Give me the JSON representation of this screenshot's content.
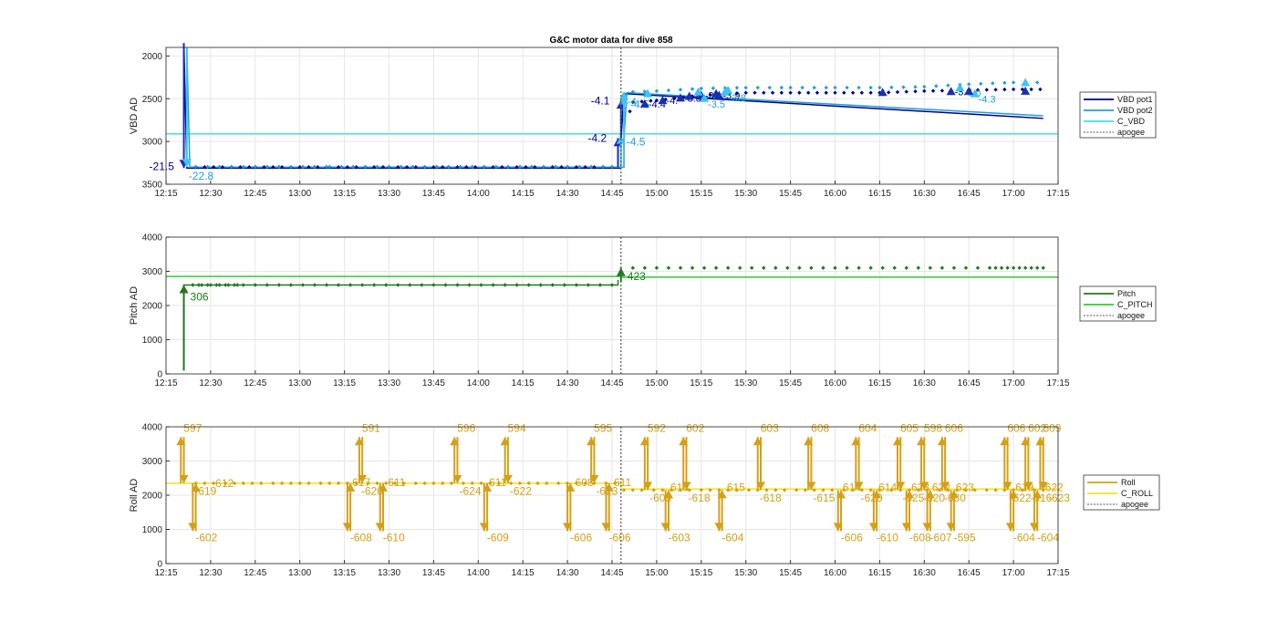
{
  "figure": {
    "title": "G&C motor data for dive 858"
  },
  "chart_data": [
    {
      "type": "line",
      "id": "vbd",
      "ylabel": "VBD AD",
      "ylim": [
        1900,
        3500
      ],
      "y_reversed": true,
      "yticks": [
        2000,
        2500,
        3000,
        3500
      ],
      "xlim": [
        "12:15",
        "17:15"
      ],
      "xticks": [
        "12:15",
        "12:30",
        "12:45",
        "13:00",
        "13:15",
        "13:30",
        "13:45",
        "14:00",
        "14:15",
        "14:30",
        "14:45",
        "15:00",
        "15:15",
        "15:30",
        "15:45",
        "16:00",
        "16:15",
        "16:30",
        "16:45",
        "17:00",
        "17:15"
      ],
      "grid": true,
      "legend_position": "right",
      "legend": [
        "VBD pot1",
        "VBD pot2",
        "C_VBD",
        "apogee"
      ],
      "colors": {
        "pot1": "#00008b",
        "pot2": "#1e9fdc",
        "c_vbd": "#40e0e6",
        "apogee": "#555555",
        "arrow1": "#1a2fb0",
        "arrow2": "#3fc3f0"
      },
      "series": [
        {
          "name": "VBD pot1",
          "x": [
            "12:21",
            "12:22",
            "14:48",
            "14:48",
            "14:49",
            "17:10"
          ],
          "values": [
            1850,
            3310,
            3310,
            3000,
            2440,
            2730
          ]
        },
        {
          "name": "VBD pot2",
          "x": [
            "12:22",
            "12:23",
            "14:49",
            "14:49",
            "14:50",
            "17:10"
          ],
          "values": [
            1900,
            3300,
            3300,
            2960,
            2430,
            2700
          ]
        },
        {
          "name": "C_VBD",
          "x": [
            "12:15",
            "17:15"
          ],
          "values": [
            2910,
            2910
          ]
        }
      ],
      "vbd_pot1_points": [
        [
          "12:25",
          3300
        ],
        [
          "12:45",
          3300
        ],
        [
          "13:10",
          3300
        ],
        [
          "13:30",
          3300
        ],
        [
          "13:50",
          3300
        ],
        [
          "14:10",
          3300
        ],
        [
          "14:30",
          3300
        ],
        [
          "14:45",
          3300
        ],
        [
          "14:52",
          2540
        ],
        [
          "15:00",
          2520
        ],
        [
          "15:15",
          2460
        ],
        [
          "15:30",
          2430
        ],
        [
          "15:45",
          2430
        ],
        [
          "16:00",
          2430
        ],
        [
          "16:15",
          2430
        ],
        [
          "16:30",
          2410
        ],
        [
          "16:45",
          2400
        ],
        [
          "17:00",
          2390
        ],
        [
          "17:10",
          2390
        ]
      ],
      "vbd_pot2_points": [
        [
          "12:25",
          3295
        ],
        [
          "12:45",
          3295
        ],
        [
          "13:10",
          3295
        ],
        [
          "13:30",
          3295
        ],
        [
          "13:50",
          3295
        ],
        [
          "14:10",
          3295
        ],
        [
          "14:30",
          3295
        ],
        [
          "14:45",
          3295
        ],
        [
          "14:52",
          2420
        ],
        [
          "15:00",
          2410
        ],
        [
          "15:15",
          2380
        ],
        [
          "15:30",
          2370
        ],
        [
          "15:45",
          2370
        ],
        [
          "16:00",
          2370
        ],
        [
          "16:15",
          2370
        ],
        [
          "16:30",
          2360
        ],
        [
          "16:45",
          2330
        ],
        [
          "17:00",
          2310
        ],
        [
          "17:10",
          2310
        ]
      ],
      "arrows": [
        {
          "x": "12:21",
          "from": 1850,
          "to": 3310,
          "series": 1,
          "label": "-21.5"
        },
        {
          "x": "12:22",
          "from": 1900,
          "to": 3300,
          "series": 2,
          "label": "-22.8"
        },
        {
          "x": "14:47",
          "from": 3300,
          "to": 2960,
          "series": 1,
          "label": "-4.2"
        },
        {
          "x": "14:48",
          "from": 3300,
          "to": 2930,
          "series": 2,
          "label": "-4.5"
        },
        {
          "x": "14:48",
          "from": 2960,
          "to": 2520,
          "series": 1,
          "label": "-4.1"
        },
        {
          "x": "14:49",
          "from": 2930,
          "to": 2470,
          "series": 2,
          "label": "-4.5"
        }
      ],
      "tri_markers": [
        {
          "x": "14:49",
          "y": 2465,
          "series": 2,
          "label": "-4."
        },
        {
          "x": "14:56",
          "y": 2560,
          "series": 1,
          "label": "-4.4"
        },
        {
          "x": "15:02",
          "y": 2520,
          "series": 1,
          "label": "-4."
        },
        {
          "x": "15:08",
          "y": 2490,
          "series": 1,
          "label": "-3.8"
        },
        {
          "x": "15:11",
          "y": 2470,
          "series": 1,
          "label": "-3."
        },
        {
          "x": "15:15",
          "y": 2460,
          "series": 1,
          "label": "-3."
        },
        {
          "x": "15:21",
          "y": 2460,
          "series": 1,
          "label": "-3.9"
        },
        {
          "x": "15:16",
          "y": 2495,
          "series": 2,
          "label": "-3.5"
        },
        {
          "x": "15:23",
          "y": 2420,
          "series": 2,
          "label": "-3.8"
        },
        {
          "x": "16:39",
          "y": 2415,
          "series": 1,
          "label": "-3.8"
        },
        {
          "x": "16:42",
          "y": 2370,
          "series": 2,
          "label": "-4.0"
        },
        {
          "x": "16:47",
          "y": 2440,
          "series": 2,
          "label": "-4.3"
        }
      ],
      "plain_tri": [
        {
          "x": "15:20",
          "y": 2440,
          "series": 1
        },
        {
          "x": "16:16",
          "y": 2425,
          "series": 1
        },
        {
          "x": "16:45",
          "y": 2410,
          "series": 1
        },
        {
          "x": "17:04",
          "y": 2410,
          "series": 1
        },
        {
          "x": "14:57",
          "y": 2440,
          "series": 2
        },
        {
          "x": "15:14",
          "y": 2420,
          "series": 2
        },
        {
          "x": "15:24",
          "y": 2400,
          "series": 2
        },
        {
          "x": "17:04",
          "y": 2310,
          "series": 2
        }
      ]
    },
    {
      "type": "line",
      "id": "pitch",
      "ylabel": "Pitch AD",
      "ylim": [
        0,
        4000
      ],
      "yticks": [
        0,
        1000,
        2000,
        3000,
        4000
      ],
      "xlim": [
        "12:15",
        "17:15"
      ],
      "xticks": [
        "12:15",
        "12:30",
        "12:45",
        "13:00",
        "13:15",
        "13:30",
        "13:45",
        "14:00",
        "14:15",
        "14:30",
        "14:45",
        "15:00",
        "15:15",
        "15:30",
        "15:45",
        "16:00",
        "16:15",
        "16:30",
        "16:45",
        "17:00",
        "17:15"
      ],
      "grid": true,
      "legend_position": "right",
      "legend": [
        "Pitch",
        "C_PITCH",
        "apogee"
      ],
      "colors": {
        "pitch": "#1f7a1f",
        "c_pitch": "#33cc33",
        "apogee": "#555555"
      },
      "series": [
        {
          "name": "Pitch",
          "x": [
            "12:21",
            "12:21",
            "14:47",
            "14:47",
            "14:48",
            "17:10"
          ],
          "values": [
            100,
            2600,
            2600,
            2750,
            3100,
            3100
          ]
        },
        {
          "name": "C_PITCH",
          "x": [
            "12:15",
            "14:48",
            "14:48",
            "17:15"
          ],
          "values": [
            2850,
            2850,
            2830,
            2830
          ]
        }
      ],
      "arrows": [
        {
          "x": "12:21",
          "from": 100,
          "to": 2600,
          "label": "306"
        },
        {
          "x": "14:48",
          "from": 2700,
          "to": 3100,
          "label": "423"
        }
      ]
    },
    {
      "type": "line",
      "id": "roll",
      "ylabel": "Roll AD",
      "ylim": [
        0,
        4000
      ],
      "yticks": [
        0,
        1000,
        2000,
        3000,
        4000
      ],
      "xlim": [
        "12:15",
        "17:15"
      ],
      "xticks": [
        "12:15",
        "12:30",
        "12:45",
        "13:00",
        "13:15",
        "13:30",
        "13:45",
        "14:00",
        "14:15",
        "14:30",
        "14:45",
        "15:00",
        "15:15",
        "15:30",
        "15:45",
        "16:00",
        "16:15",
        "16:30",
        "16:45",
        "17:00",
        "17:15"
      ],
      "grid": true,
      "legend_position": "right",
      "legend": [
        "Roll",
        "C_ROLL",
        "apogee"
      ],
      "colors": {
        "roll": "#d4a017",
        "c_roll": "#f4e31f",
        "apogee": "#555555"
      },
      "series": [
        {
          "name": "Roll",
          "x": [
            "12:15",
            "14:48",
            "14:48",
            "17:12"
          ],
          "values": [
            2350,
            2350,
            2150,
            2150
          ]
        },
        {
          "name": "C_ROLL",
          "x": [
            "12:15",
            "14:48",
            "14:48",
            "17:15"
          ],
          "values": [
            2350,
            2350,
            2180,
            2180
          ]
        }
      ],
      "spikes_up": [
        {
          "x": "12:20",
          "label": "597"
        },
        {
          "x": "13:20",
          "label": "591"
        },
        {
          "x": "13:52",
          "label": "596"
        },
        {
          "x": "14:09",
          "label": "594"
        },
        {
          "x": "14:38",
          "label": "595"
        },
        {
          "x": "14:56",
          "label": "592"
        },
        {
          "x": "15:09",
          "label": "602"
        },
        {
          "x": "15:34",
          "label": "603"
        },
        {
          "x": "15:51",
          "label": "608"
        },
        {
          "x": "16:07",
          "label": "604"
        },
        {
          "x": "16:21",
          "label": "605"
        },
        {
          "x": "16:29",
          "label": "598"
        },
        {
          "x": "16:36",
          "label": "606"
        },
        {
          "x": "16:57",
          "label": "606"
        },
        {
          "x": "17:04",
          "label": "602"
        },
        {
          "x": "17:09",
          "label": "609"
        }
      ],
      "spikes_down": [
        {
          "x": "12:24",
          "label": "-602"
        },
        {
          "x": "13:16",
          "label": "-608"
        },
        {
          "x": "13:27",
          "label": "-610"
        },
        {
          "x": "14:02",
          "label": "-609"
        },
        {
          "x": "14:30",
          "label": "-606"
        },
        {
          "x": "14:43",
          "label": "-606"
        },
        {
          "x": "15:03",
          "label": "-603"
        },
        {
          "x": "15:21",
          "label": "-604"
        },
        {
          "x": "16:01",
          "label": "-606"
        },
        {
          "x": "16:13",
          "label": "-610"
        },
        {
          "x": "16:24",
          "label": "-608"
        },
        {
          "x": "16:31",
          "label": "-607"
        },
        {
          "x": "16:39",
          "label": "-595"
        },
        {
          "x": "16:59",
          "label": "-604"
        },
        {
          "x": "17:07",
          "label": "-604"
        }
      ],
      "mid_labels": [
        {
          "x": "12:24",
          "y": 2150,
          "label": "-619"
        },
        {
          "x": "12:31",
          "y": 2380,
          "label": "612"
        },
        {
          "x": "13:17",
          "y": 2400,
          "label": "617"
        },
        {
          "x": "13:20",
          "y": 2150,
          "label": "-620"
        },
        {
          "x": "13:29",
          "y": 2400,
          "label": "611"
        },
        {
          "x": "13:53",
          "y": 2150,
          "label": "-624"
        },
        {
          "x": "14:03",
          "y": 2400,
          "label": "611"
        },
        {
          "x": "14:10",
          "y": 2150,
          "label": "-622"
        },
        {
          "x": "14:32",
          "y": 2400,
          "label": "608"
        },
        {
          "x": "14:39",
          "y": 2150,
          "label": "-623"
        },
        {
          "x": "14:45",
          "y": 2400,
          "label": "611"
        },
        {
          "x": "14:57",
          "y": 1950,
          "label": "-609"
        },
        {
          "x": "15:04",
          "y": 2250,
          "label": "616"
        },
        {
          "x": "15:10",
          "y": 1950,
          "label": "-618"
        },
        {
          "x": "15:23",
          "y": 2250,
          "label": "615"
        },
        {
          "x": "15:34",
          "y": 1950,
          "label": "-618"
        },
        {
          "x": "15:52",
          "y": 1950,
          "label": "-615"
        },
        {
          "x": "16:02",
          "y": 2250,
          "label": "614"
        },
        {
          "x": "16:08",
          "y": 1950,
          "label": "-620"
        },
        {
          "x": "16:14",
          "y": 2250,
          "label": "614"
        },
        {
          "x": "16:22",
          "y": 1950,
          "label": "-625"
        },
        {
          "x": "16:25",
          "y": 2250,
          "label": "623"
        },
        {
          "x": "16:29",
          "y": 1950,
          "label": "-620"
        },
        {
          "x": "16:32",
          "y": 2250,
          "label": "622"
        },
        {
          "x": "16:36",
          "y": 1950,
          "label": "-630"
        },
        {
          "x": "16:40",
          "y": 2250,
          "label": "623"
        },
        {
          "x": "16:58",
          "y": 1950,
          "label": "-622"
        },
        {
          "x": "17:00",
          "y": 2250,
          "label": "619"
        },
        {
          "x": "17:05",
          "y": 1950,
          "label": "-616"
        },
        {
          "x": "17:10",
          "y": 2250,
          "label": "622"
        },
        {
          "x": "17:11",
          "y": 1950,
          "label": "-623"
        }
      ]
    }
  ]
}
